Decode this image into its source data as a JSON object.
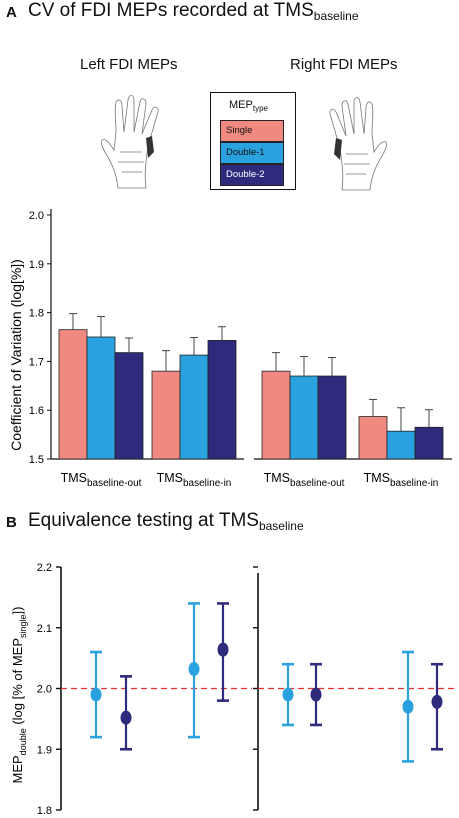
{
  "panel_a": {
    "letter": "A",
    "title_main": "CV of FDI MEPs recorded at TMS",
    "title_sub": "baseline",
    "col_titles": [
      "Left FDI MEPs",
      "Right FDI MEPs"
    ],
    "legend": {
      "head_main": "MEP",
      "head_sub": "type",
      "items": [
        {
          "label": "Single",
          "color": "#f08a80"
        },
        {
          "label": "Double-1",
          "color": "#2aa2df"
        },
        {
          "label": "Double-2",
          "color": "#2e2a7c"
        }
      ]
    },
    "ylabel": "Coefficient of Variation (log[%])",
    "icons": [
      "left-hand-icon",
      "right-hand-icon"
    ]
  },
  "panel_b": {
    "letter": "B",
    "title_main": "Equivalence testing at TMS",
    "title_sub": "baseline",
    "ylabel_main": "MEP",
    "ylabel_sub1": "double",
    "ylabel_mid": " (log [% of MEP",
    "ylabel_sub2": "single",
    "ylabel_end": "])"
  },
  "chart_data": [
    {
      "type": "bar",
      "ylim": [
        1.5,
        2.0
      ],
      "yticks": [
        "1.5",
        "1.6",
        "1.7",
        "1.8",
        "1.9",
        "2.0"
      ],
      "groups": [
        {
          "panel": "Left FDI MEPs",
          "main": "TMS",
          "sub": "baseline-out",
          "values": [
            1.765,
            1.75,
            1.718
          ],
          "errors": [
            0.033,
            0.042,
            0.03
          ]
        },
        {
          "panel": "Left FDI MEPs",
          "main": "TMS",
          "sub": "baseline-in",
          "values": [
            1.68,
            1.713,
            1.743
          ],
          "errors": [
            0.042,
            0.036,
            0.028
          ]
        },
        {
          "panel": "Right FDI MEPs",
          "main": "TMS",
          "sub": "baseline-out",
          "values": [
            1.68,
            1.67,
            1.67
          ],
          "errors": [
            0.038,
            0.04,
            0.038
          ]
        },
        {
          "panel": "Right FDI MEPs",
          "main": "TMS",
          "sub": "baseline-in",
          "values": [
            1.587,
            1.557,
            1.565
          ],
          "errors": [
            0.035,
            0.048,
            0.036
          ]
        }
      ],
      "series": [
        "Single",
        "Double-1",
        "Double-2"
      ],
      "grid": false
    },
    {
      "type": "scatter",
      "ylim": [
        1.8,
        2.2
      ],
      "yticks": [
        "1.8",
        "1.9",
        "2.0",
        "2.1",
        "2.2"
      ],
      "reference_line": 2.0,
      "points": [
        {
          "panel": "left",
          "series": "Double-1",
          "y": 1.99,
          "low": 1.92,
          "high": 2.06
        },
        {
          "panel": "left",
          "series": "Double-2",
          "y": 1.952,
          "low": 1.9,
          "high": 2.02
        },
        {
          "panel": "left",
          "series": "Double-1",
          "y": 2.032,
          "low": 1.92,
          "high": 2.14
        },
        {
          "panel": "left",
          "series": "Double-2",
          "y": 2.064,
          "low": 1.98,
          "high": 2.14
        },
        {
          "panel": "right",
          "series": "Double-1",
          "y": 1.99,
          "low": 1.94,
          "high": 2.04
        },
        {
          "panel": "right",
          "series": "Double-2",
          "y": 1.99,
          "low": 1.94,
          "high": 2.04
        },
        {
          "panel": "right",
          "series": "Double-1",
          "y": 1.97,
          "low": 1.88,
          "high": 2.06
        },
        {
          "panel": "right",
          "series": "Double-2",
          "y": 1.978,
          "low": 1.9,
          "high": 2.04
        }
      ],
      "grid": false
    }
  ]
}
